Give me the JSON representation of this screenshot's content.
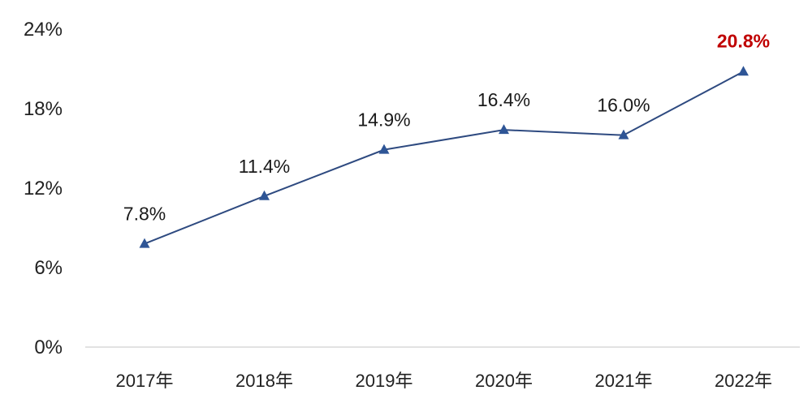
{
  "chart_data": {
    "type": "line",
    "categories": [
      "2017年",
      "2018年",
      "2019年",
      "2020年",
      "2021年",
      "2022年"
    ],
    "series": [
      {
        "values": [
          7.8,
          11.4,
          14.9,
          16.4,
          16.0,
          20.8
        ],
        "data_labels": [
          "7.8%",
          "11.4%",
          "14.9%",
          "16.4%",
          "16.0%",
          "20.8%"
        ]
      }
    ],
    "y_ticks": [
      0,
      6,
      12,
      18,
      24
    ],
    "y_tick_labels": [
      "0%",
      "6%",
      "12%",
      "18%",
      "24%"
    ],
    "ylim": [
      0,
      24
    ],
    "title": "",
    "xlabel": "",
    "ylabel": "",
    "grid": false,
    "legend": "none",
    "marker": "triangle",
    "highlight_index": 5,
    "colors": {
      "line": "#2e4a80",
      "marker": "#2e5596",
      "highlight_label": "#c00000",
      "baseline": "#d9d9d9"
    }
  }
}
